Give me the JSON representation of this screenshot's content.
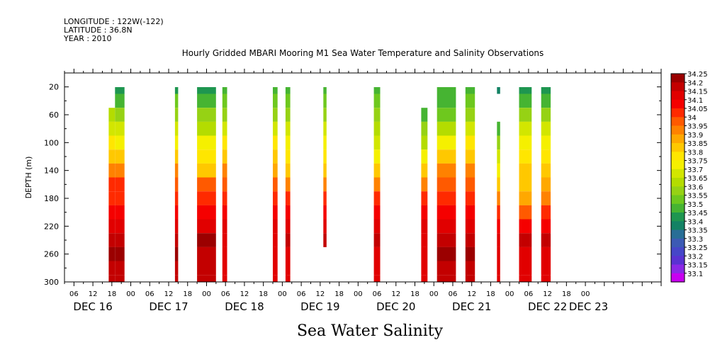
{
  "header": {
    "longitude": "LONGITUDE : 122W(-122)",
    "latitude": "LATITUDE : 36.8N",
    "year": "YEAR : 2010"
  },
  "footer_title": "Sea Water Salinity",
  "chart_data": {
    "type": "heatmap",
    "title": "Hourly Gridded MBARI Mooring M1 Sea Water Temperature and Salinity Observations",
    "xlabel": "",
    "ylabel": "DEPTH (m)",
    "ylim": [
      300,
      0
    ],
    "yticks": [
      20,
      60,
      100,
      140,
      180,
      220,
      260,
      300
    ],
    "hour_tick_labels": [
      "06",
      "12",
      "18",
      "00",
      "06",
      "12",
      "18",
      "00",
      "06",
      "12",
      "18",
      "00",
      "06",
      "12",
      "18",
      "00",
      "06",
      "12",
      "18",
      "00",
      "06",
      "12",
      "18",
      "00",
      "06",
      "12",
      "18",
      "00"
    ],
    "day_labels": [
      "DEC 16",
      "DEC 17",
      "DEC 18",
      "DEC 19",
      "DEC 20",
      "DEC 21",
      "DEC 22",
      "DEC 23"
    ],
    "colorbar_levels": [
      "34.25",
      "34.2",
      "34.15",
      "34.1",
      "34.05",
      "34",
      "33.95",
      "33.9",
      "33.85",
      "33.8",
      "33.75",
      "33.7",
      "33.65",
      "33.6",
      "33.55",
      "33.5",
      "33.45",
      "33.4",
      "33.35",
      "33.3",
      "33.25",
      "33.2",
      "33.15",
      "33.1"
    ],
    "colorbar_colors": [
      "#9b0000",
      "#c30000",
      "#e10000",
      "#f50000",
      "#ff2a00",
      "#ff5a00",
      "#ff8200",
      "#ffa800",
      "#ffc800",
      "#ffe600",
      "#f5f000",
      "#d2e600",
      "#b4dc00",
      "#96d214",
      "#6ec81e",
      "#46b432",
      "#1e9650",
      "#138264",
      "#286e96",
      "#3c5ab4",
      "#4646c8",
      "#5a32d2",
      "#8c28e6",
      "#c800f0"
    ],
    "profile_depths": [
      20,
      40,
      60,
      80,
      100,
      120,
      140,
      160,
      180,
      200,
      220,
      240,
      260,
      280,
      300
    ],
    "profiles": [
      {
        "start": "DEC 16 17:00",
        "end": "DEC 16 19:00",
        "salinity": [
          null,
          null,
          33.65,
          33.7,
          33.8,
          33.85,
          33.95,
          34.05,
          34.05,
          34.1,
          34.15,
          34.2,
          34.25,
          34.2,
          34.2
        ]
      },
      {
        "start": "DEC 16 19:00",
        "end": "DEC 16 22:00",
        "salinity": [
          33.45,
          33.5,
          33.6,
          33.7,
          33.75,
          33.85,
          33.95,
          34.05,
          34.05,
          34.1,
          34.15,
          34.2,
          34.25,
          34.2,
          34.2
        ]
      },
      {
        "start": "DEC 17 14:00",
        "end": "DEC 17 15:00",
        "salinity": [
          33.45,
          33.55,
          33.6,
          33.7,
          33.75,
          33.85,
          33.95,
          34.0,
          34.05,
          34.1,
          34.15,
          34.2,
          34.25,
          34.2,
          34.2
        ]
      },
      {
        "start": "DEC 17 21:00",
        "end": "DEC 18 03:00",
        "salinity": [
          33.45,
          33.5,
          33.6,
          33.65,
          33.75,
          33.8,
          33.85,
          34.0,
          34.05,
          34.1,
          34.15,
          34.25,
          34.2,
          34.2,
          34.2
        ]
      },
      {
        "start": "DEC 18 05:00",
        "end": "DEC 18 06:30",
        "salinity": [
          33.5,
          33.55,
          33.6,
          33.7,
          33.8,
          33.85,
          33.95,
          34.0,
          34.05,
          34.1,
          34.15,
          34.15,
          34.15,
          34.15,
          34.15
        ]
      },
      {
        "start": "DEC 18 21:00",
        "end": "DEC 18 22:30",
        "salinity": [
          33.5,
          33.55,
          33.6,
          33.7,
          33.8,
          33.85,
          33.9,
          34.0,
          34.05,
          34.1,
          34.15,
          34.15,
          34.15,
          34.15,
          34.15
        ]
      },
      {
        "start": "DEC 19 01:00",
        "end": "DEC 19 02:30",
        "salinity": [
          33.5,
          33.55,
          33.6,
          33.7,
          33.75,
          33.8,
          33.85,
          33.95,
          34.05,
          34.1,
          34.15,
          34.2,
          34.15,
          34.15,
          34.15
        ]
      },
      {
        "start": "DEC 19 13:00",
        "end": "DEC 19 14:00",
        "salinity": [
          33.5,
          33.55,
          33.6,
          33.7,
          33.75,
          33.8,
          33.85,
          33.95,
          34.05,
          34.1,
          34.15,
          34.2,
          null,
          null,
          null
        ]
      },
      {
        "start": "DEC 20 05:00",
        "end": "DEC 20 07:00",
        "salinity": [
          33.5,
          33.55,
          33.6,
          33.65,
          33.7,
          33.75,
          33.85,
          33.95,
          34.05,
          34.1,
          34.15,
          34.2,
          34.15,
          34.15,
          34.15
        ]
      },
      {
        "start": "DEC 20 20:00",
        "end": "DEC 20 22:00",
        "salinity": [
          null,
          null,
          33.5,
          33.6,
          33.65,
          33.75,
          33.85,
          33.95,
          34.05,
          34.1,
          34.15,
          34.15,
          34.15,
          34.15,
          34.15
        ]
      },
      {
        "start": "DEC 21 01:00",
        "end": "DEC 21 07:00",
        "salinity": [
          33.5,
          33.5,
          33.55,
          33.65,
          33.75,
          33.85,
          33.95,
          34.0,
          34.05,
          34.1,
          34.15,
          34.2,
          34.25,
          34.2,
          34.2
        ]
      },
      {
        "start": "DEC 21 10:00",
        "end": "DEC 21 13:00",
        "salinity": [
          33.5,
          33.55,
          33.6,
          33.7,
          33.8,
          33.85,
          33.95,
          34.0,
          34.05,
          34.1,
          34.15,
          34.2,
          34.25,
          34.2,
          34.2
        ]
      },
      {
        "start": "DEC 21 20:00",
        "end": "DEC 21 21:00",
        "salinity": [
          33.4,
          null,
          null,
          33.5,
          33.6,
          33.7,
          33.75,
          33.85,
          33.95,
          34.05,
          34.1,
          34.15,
          34.15,
          34.15,
          34.15
        ]
      },
      {
        "start": "DEC 22 03:00",
        "end": "DEC 22 07:00",
        "salinity": [
          33.45,
          33.5,
          33.6,
          33.7,
          33.75,
          33.8,
          33.85,
          33.85,
          33.9,
          34.0,
          34.1,
          34.2,
          34.15,
          34.15,
          34.15
        ]
      },
      {
        "start": "DEC 22 10:00",
        "end": "DEC 22 13:00",
        "salinity": [
          33.45,
          33.5,
          33.6,
          33.7,
          33.75,
          33.8,
          33.85,
          33.9,
          33.95,
          34.05,
          34.1,
          34.2,
          34.15,
          34.15,
          34.15
        ]
      }
    ]
  }
}
